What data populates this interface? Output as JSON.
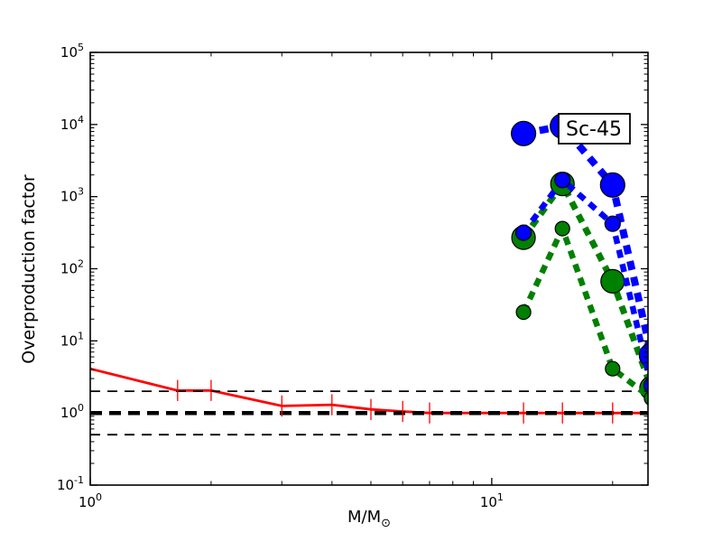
{
  "figure": {
    "background": "#ffffff"
  },
  "chart_data": {
    "type": "line",
    "title": "",
    "annotation": {
      "text": "Sc-45",
      "x": 17.9,
      "y": 8900
    },
    "xlabel": "M/M",
    "xlabel_subscript": "⊙",
    "ylabel": "Overproduction factor",
    "xscale": "log",
    "yscale": "log",
    "xlim": [
      1,
      24.5
    ],
    "ylim": [
      0.1,
      100000
    ],
    "grid": false,
    "legend_position": "none",
    "x_major_ticks": [
      {
        "value": 1,
        "label_base": "10",
        "label_exp": "0"
      },
      {
        "value": 10,
        "label_base": "10",
        "label_exp": "1"
      }
    ],
    "x_minor_ticks": [
      2,
      3,
      4,
      5,
      6,
      7,
      8,
      9,
      20
    ],
    "y_major_ticks": [
      {
        "value": 0.1,
        "label_base": "10",
        "label_exp": "-1"
      },
      {
        "value": 1,
        "label_base": "10",
        "label_exp": "0"
      },
      {
        "value": 10,
        "label_base": "10",
        "label_exp": "1"
      },
      {
        "value": 100,
        "label_base": "10",
        "label_exp": "2"
      },
      {
        "value": 1000,
        "label_base": "10",
        "label_exp": "3"
      },
      {
        "value": 10000,
        "label_base": "10",
        "label_exp": "4"
      },
      {
        "value": 100000,
        "label_base": "10",
        "label_exp": "5"
      }
    ],
    "reference_lines": [
      {
        "y": 1.0,
        "color": "#000000",
        "style": "dashed",
        "linewidth": 4.5,
        "dash": [
          13,
          8
        ]
      },
      {
        "y": 2.0,
        "color": "#000000",
        "style": "dashed",
        "linewidth": 1.8,
        "dash": [
          11,
          8
        ]
      },
      {
        "y": 0.5,
        "color": "#000000",
        "style": "dashed",
        "linewidth": 1.8,
        "dash": [
          11,
          8
        ]
      }
    ],
    "series": [
      {
        "name": "red solid line with error bars",
        "color": "#ff0000",
        "linestyle": "solid",
        "linewidth": 2.8,
        "marker": "none",
        "x": [
          1.0,
          1.65,
          2.0,
          3.0,
          4.0,
          5.0,
          6.0,
          7.0,
          12.0,
          15.0,
          20.0,
          24.5
        ],
        "y": [
          4.1,
          2.05,
          2.05,
          1.25,
          1.3,
          1.12,
          1.05,
          1.0,
          1.0,
          1.0,
          1.0,
          1.0
        ],
        "errorbar_x": [
          1.65,
          2.0,
          3.0,
          4.0,
          5.0,
          6.0,
          7.0,
          12.0,
          15.0,
          20.0
        ],
        "errorbar_factor": 1.4
      },
      {
        "name": "green dashed with large circle markers",
        "color": "#008000",
        "linestyle": "dashed",
        "linewidth": 7,
        "dash": [
          9,
          7
        ],
        "marker": "circle",
        "marker_radius": 13,
        "x": [
          12,
          15,
          20,
          25
        ],
        "y": [
          270,
          1500,
          67,
          2.2
        ]
      },
      {
        "name": "green dashed with small circle markers",
        "color": "#008000",
        "linestyle": "dashed",
        "linewidth": 6.5,
        "dash": [
          9,
          7
        ],
        "marker": "circle",
        "marker_radius": 8,
        "x": [
          12,
          15,
          20,
          25
        ],
        "y": [
          25,
          360,
          4.1,
          1.6
        ]
      },
      {
        "name": "blue dashed with large circle markers",
        "color": "#0000ff",
        "linestyle": "dashed",
        "linewidth": 8,
        "dash": [
          10,
          8
        ],
        "marker": "circle",
        "marker_radius": 13.5,
        "x": [
          12,
          15,
          20,
          25
        ],
        "y": [
          7500,
          9500,
          1450,
          6.3
        ]
      },
      {
        "name": "blue dashed with small circle markers",
        "color": "#0000ff",
        "linestyle": "dashed",
        "linewidth": 6.5,
        "dash": [
          9,
          7
        ],
        "marker": "circle",
        "marker_radius": 8.5,
        "x": [
          12,
          15,
          20,
          25
        ],
        "y": [
          316,
          1700,
          420,
          2.4
        ]
      }
    ]
  }
}
